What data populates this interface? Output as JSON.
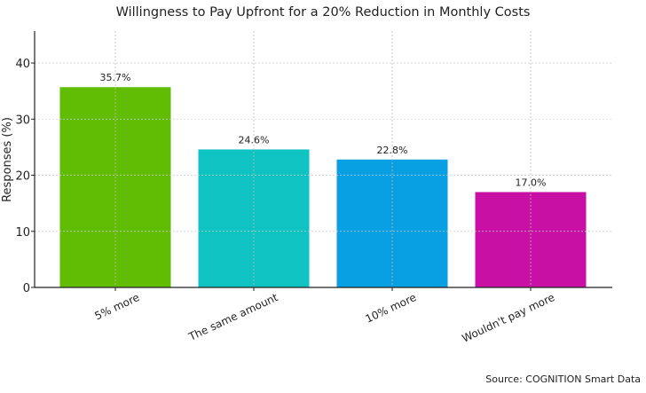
{
  "chart_data": {
    "type": "bar",
    "title": "Willingness to Pay Upfront for a 20% Reduction in Monthly Costs",
    "xlabel": "",
    "ylabel": "Responses (%)",
    "categories": [
      "5% more",
      "The same amount",
      "10% more",
      "Wouldn't pay more"
    ],
    "values": [
      35.7,
      24.6,
      22.8,
      17.0
    ],
    "data_labels": [
      "35.7%",
      "24.6%",
      "22.8%",
      "17.0%"
    ],
    "colors": [
      "#61bd04",
      "#10c3c3",
      "#099fe3",
      "#c810a4"
    ],
    "ylim": [
      0,
      45.7
    ],
    "yticks": [
      0,
      10,
      20,
      30,
      40
    ],
    "grid": true,
    "legend": "none"
  },
  "source": "Source: COGNITION Smart Data"
}
